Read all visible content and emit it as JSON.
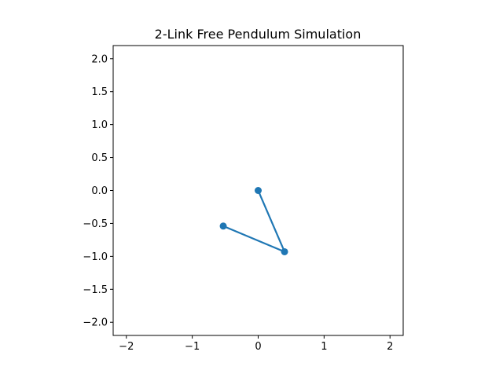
{
  "chart_data": {
    "type": "line",
    "title": "2-Link Free Pendulum Simulation",
    "xlabel": "",
    "ylabel": "",
    "xlim": [
      -2.2,
      2.2
    ],
    "ylim": [
      -2.2,
      2.2
    ],
    "xticks": [
      {
        "value": -2,
        "label": "−2"
      },
      {
        "value": -1,
        "label": "−1"
      },
      {
        "value": 0,
        "label": "0"
      },
      {
        "value": 1,
        "label": "1"
      },
      {
        "value": 2,
        "label": "2"
      }
    ],
    "yticks": [
      {
        "value": 2.0,
        "label": "2.0"
      },
      {
        "value": 1.5,
        "label": "1.5"
      },
      {
        "value": 1.0,
        "label": "1.0"
      },
      {
        "value": 0.5,
        "label": "0.5"
      },
      {
        "value": 0.0,
        "label": "0.0"
      },
      {
        "value": -0.5,
        "label": "−0.5"
      },
      {
        "value": -1.0,
        "label": "−1.0"
      },
      {
        "value": -1.5,
        "label": "−1.5"
      },
      {
        "value": -2.0,
        "label": "−2.0"
      }
    ],
    "grid": false,
    "legend": "none",
    "series": [
      {
        "color": "#1f77b4",
        "marker": "circle",
        "points": [
          {
            "x": 0.0,
            "y": 0.0
          },
          {
            "x": 0.4,
            "y": -0.93
          },
          {
            "x": -0.53,
            "y": -0.54
          }
        ]
      }
    ]
  }
}
